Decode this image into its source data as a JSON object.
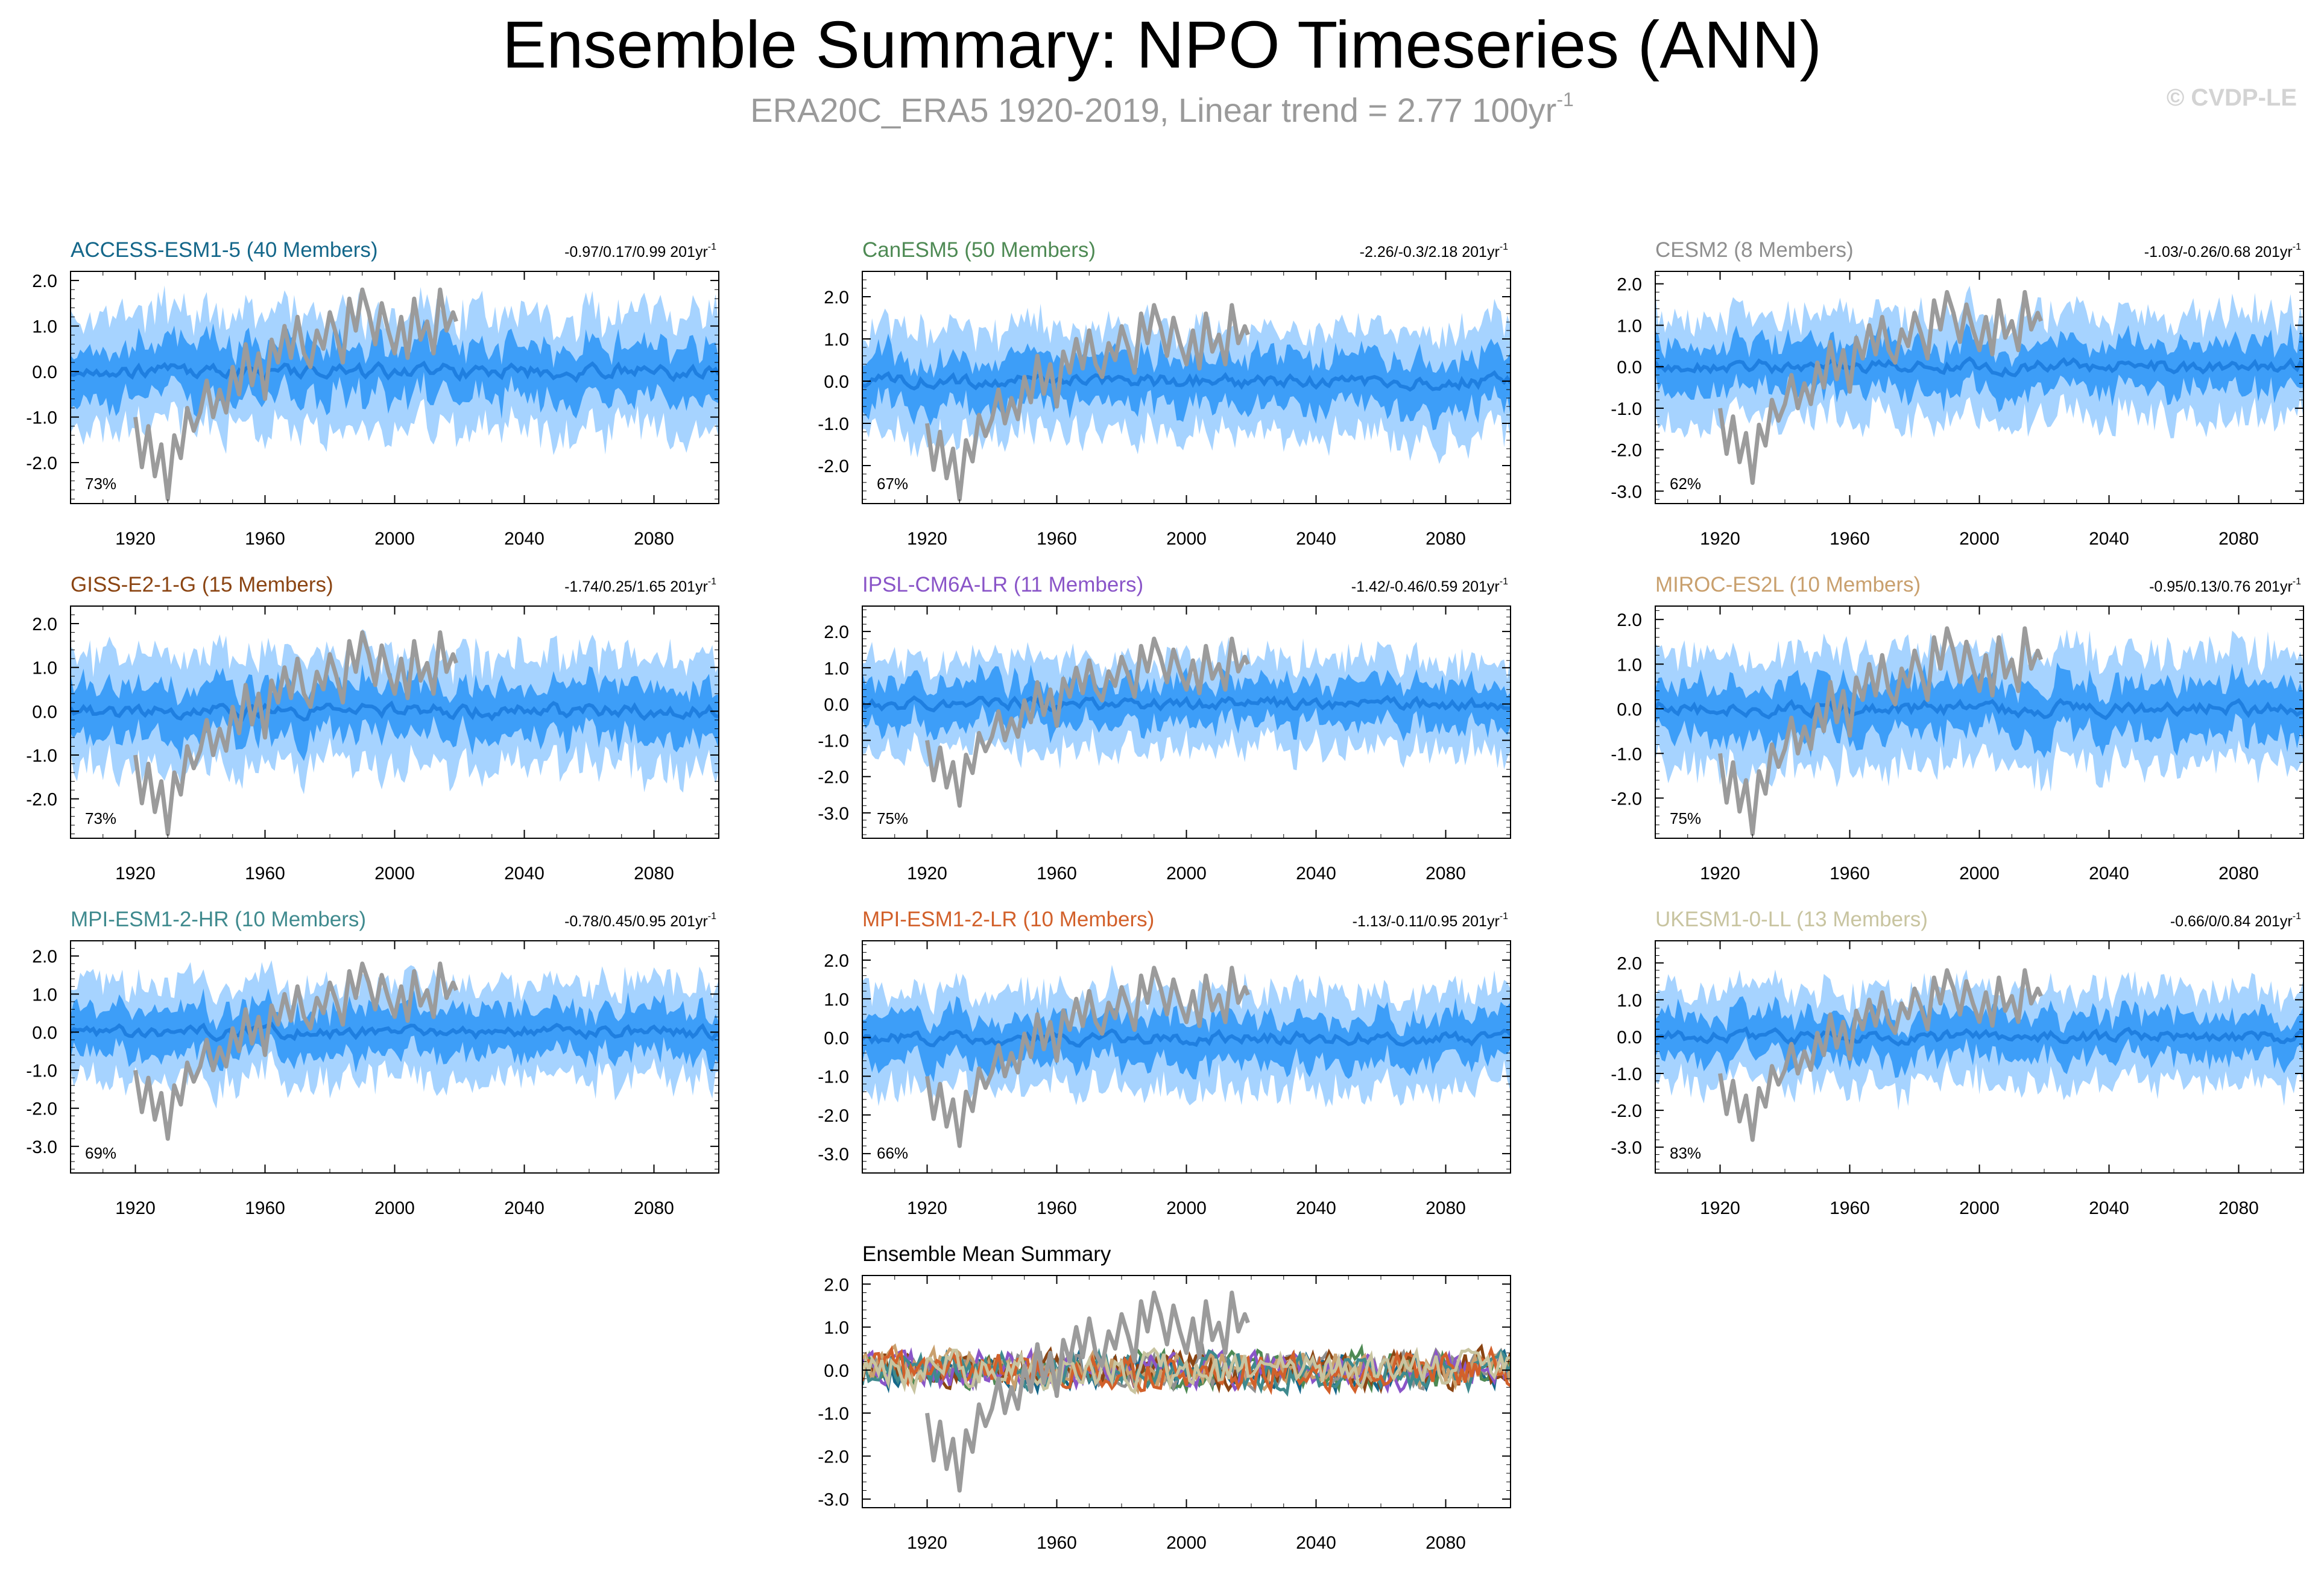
{
  "title": "Ensemble Summary: NPO Timeseries (ANN)",
  "subtitle": {
    "text": "ERA20C_ERA5 1920-2019, Linear trend = 2.77 100yr",
    "superscript": "-1"
  },
  "copyright": "© CVDP-LE",
  "colors": {
    "band_outer": "#a6d3ff",
    "band_inner": "#3d9ef8",
    "ensemble_mean": "#1f7fe0",
    "observation": "#9b9b9b"
  },
  "chart_data": [
    {
      "type": "area",
      "model": "ACCESS-ESM1-5",
      "label": "ACCESS-ESM1-5 (40 Members)",
      "label_color": "#14678a",
      "stats": "-0.97/0.17/0.99 201yr",
      "stats_sup": "-1",
      "percent": "73%",
      "x_range": [
        1900,
        2100
      ],
      "ylim": [
        -2.9,
        2.2
      ],
      "yticks": [
        "2.0",
        "1.0",
        "0.0",
        "-1.0",
        "-2.0"
      ],
      "ytick_values": [
        2,
        1,
        0,
        -1,
        -2
      ],
      "xticks": [
        "1920",
        "1960",
        "2000",
        "2040",
        "2080"
      ],
      "xtick_values": [
        1920,
        1960,
        2000,
        2040,
        2080
      ],
      "series": [
        {
          "name": "10-90% range",
          "amplitude_outer": 1.25
        },
        {
          "name": "25-75% range",
          "amplitude_inner": 0.6
        },
        {
          "name": "Ensemble mean"
        },
        {
          "name": "ERA20C_ERA5 1920-2019"
        }
      ]
    },
    {
      "type": "area",
      "model": "CanESM5",
      "label": "CanESM5 (50 Members)",
      "label_color": "#4e8a54",
      "stats": "-2.26/-0.3/2.18 201yr",
      "stats_sup": "-1",
      "percent": "67%",
      "x_range": [
        1900,
        2100
      ],
      "ylim": [
        -2.9,
        2.6
      ],
      "yticks": [
        "2.0",
        "1.0",
        "0.0",
        "-1.0",
        "-2.0"
      ],
      "ytick_values": [
        2,
        1,
        0,
        -1,
        -2
      ],
      "xticks": [
        "1920",
        "1960",
        "2000",
        "2040",
        "2080"
      ],
      "xtick_values": [
        1920,
        1960,
        2000,
        2040,
        2080
      ],
      "series": [
        {
          "name": "10-90% range"
        },
        {
          "name": "25-75% range"
        },
        {
          "name": "Ensemble mean"
        },
        {
          "name": "ERA20C_ERA5 1920-2019"
        }
      ]
    },
    {
      "type": "area",
      "model": "CESM2",
      "label": "CESM2 (8 Members)",
      "label_color": "#8f8f8f",
      "stats": "-1.03/-0.26/0.68 201yr",
      "stats_sup": "-1",
      "percent": "62%",
      "x_range": [
        1900,
        2100
      ],
      "ylim": [
        -3.3,
        2.3
      ],
      "yticks": [
        "2.0",
        "1.0",
        "0.0",
        "-1.0",
        "-2.0",
        "-3.0"
      ],
      "ytick_values": [
        2,
        1,
        0,
        -1,
        -2,
        -3
      ],
      "xticks": [
        "1920",
        "1960",
        "2000",
        "2040",
        "2080"
      ],
      "xtick_values": [
        1920,
        1960,
        2000,
        2040,
        2080
      ],
      "series": [
        {
          "name": "10-90% range"
        },
        {
          "name": "25-75% range"
        },
        {
          "name": "Ensemble mean"
        },
        {
          "name": "ERA20C_ERA5 1920-2019"
        }
      ]
    },
    {
      "type": "area",
      "model": "GISS-E2-1-G",
      "label": "GISS-E2-1-G (15 Members)",
      "label_color": "#8b4513",
      "stats": "-1.74/0.25/1.65 201yr",
      "stats_sup": "-1",
      "percent": "73%",
      "x_range": [
        1900,
        2100
      ],
      "ylim": [
        -2.9,
        2.4
      ],
      "yticks": [
        "2.0",
        "1.0",
        "0.0",
        "-1.0",
        "-2.0"
      ],
      "ytick_values": [
        2,
        1,
        0,
        -1,
        -2
      ],
      "xticks": [
        "1920",
        "1960",
        "2000",
        "2040",
        "2080"
      ],
      "xtick_values": [
        1920,
        1960,
        2000,
        2040,
        2080
      ],
      "series": [
        {
          "name": "10-90% range"
        },
        {
          "name": "25-75% range"
        },
        {
          "name": "Ensemble mean"
        },
        {
          "name": "ERA20C_ERA5 1920-2019"
        }
      ]
    },
    {
      "type": "area",
      "model": "IPSL-CM6A-LR",
      "label": "IPSL-CM6A-LR (11 Members)",
      "label_color": "#8a55c8",
      "stats": "-1.42/-0.46/0.59 201yr",
      "stats_sup": "-1",
      "percent": "75%",
      "x_range": [
        1900,
        2100
      ],
      "ylim": [
        -3.7,
        2.7
      ],
      "yticks": [
        "2.0",
        "1.0",
        "0.0",
        "-1.0",
        "-2.0",
        "-3.0"
      ],
      "ytick_values": [
        2,
        1,
        0,
        -1,
        -2,
        -3
      ],
      "xticks": [
        "1920",
        "1960",
        "2000",
        "2040",
        "2080"
      ],
      "xtick_values": [
        1920,
        1960,
        2000,
        2040,
        2080
      ],
      "series": [
        {
          "name": "10-90% range"
        },
        {
          "name": "25-75% range"
        },
        {
          "name": "Ensemble mean"
        },
        {
          "name": "ERA20C_ERA5 1920-2019"
        }
      ]
    },
    {
      "type": "area",
      "model": "MIROC-ES2L",
      "label": "MIROC-ES2L (10 Members)",
      "label_color": "#c9a06e",
      "stats": "-0.95/0.13/0.76 201yr",
      "stats_sup": "-1",
      "percent": "75%",
      "x_range": [
        1900,
        2100
      ],
      "ylim": [
        -2.9,
        2.3
      ],
      "yticks": [
        "2.0",
        "1.0",
        "0.0",
        "-1.0",
        "-2.0"
      ],
      "ytick_values": [
        2,
        1,
        0,
        -1,
        -2
      ],
      "xticks": [
        "1920",
        "1960",
        "2000",
        "2040",
        "2080"
      ],
      "xtick_values": [
        1920,
        1960,
        2000,
        2040,
        2080
      ],
      "series": [
        {
          "name": "10-90% range"
        },
        {
          "name": "25-75% range"
        },
        {
          "name": "Ensemble mean"
        },
        {
          "name": "ERA20C_ERA5 1920-2019"
        }
      ]
    },
    {
      "type": "area",
      "model": "MPI-ESM1-2-HR",
      "label": "MPI-ESM1-2-HR (10 Members)",
      "label_color": "#3f8a8e",
      "stats": "-0.78/0.45/0.95 201yr",
      "stats_sup": "-1",
      "percent": "69%",
      "x_range": [
        1900,
        2100
      ],
      "ylim": [
        -3.7,
        2.4
      ],
      "yticks": [
        "2.0",
        "1.0",
        "0.0",
        "-1.0",
        "-2.0",
        "-3.0"
      ],
      "ytick_values": [
        2,
        1,
        0,
        -1,
        -2,
        -3
      ],
      "xticks": [
        "1920",
        "1960",
        "2000",
        "2040",
        "2080"
      ],
      "xtick_values": [
        1920,
        1960,
        2000,
        2040,
        2080
      ],
      "series": [
        {
          "name": "10-90% range"
        },
        {
          "name": "25-75% range"
        },
        {
          "name": "Ensemble mean"
        },
        {
          "name": "ERA20C_ERA5 1920-2019"
        }
      ]
    },
    {
      "type": "area",
      "model": "MPI-ESM1-2-LR",
      "label": "MPI-ESM1-2-LR (10 Members)",
      "label_color": "#d2602a",
      "stats": "-1.13/-0.11/0.95 201yr",
      "stats_sup": "-1",
      "percent": "66%",
      "x_range": [
        1900,
        2100
      ],
      "ylim": [
        -3.5,
        2.5
      ],
      "yticks": [
        "2.0",
        "1.0",
        "0.0",
        "-1.0",
        "-2.0",
        "-3.0"
      ],
      "ytick_values": [
        2,
        1,
        0,
        -1,
        -2,
        -3
      ],
      "xticks": [
        "1920",
        "1960",
        "2000",
        "2040",
        "2080"
      ],
      "xtick_values": [
        1920,
        1960,
        2000,
        2040,
        2080
      ],
      "series": [
        {
          "name": "10-90% range"
        },
        {
          "name": "25-75% range"
        },
        {
          "name": "Ensemble mean"
        },
        {
          "name": "ERA20C_ERA5 1920-2019"
        }
      ]
    },
    {
      "type": "area",
      "model": "UKESM1-0-LL",
      "label": "UKESM1-0-LL (13 Members)",
      "label_color": "#c8c4a0",
      "stats": "-0.66/0/0.84 201yr",
      "stats_sup": "-1",
      "percent": "83%",
      "x_range": [
        1900,
        2100
      ],
      "ylim": [
        -3.7,
        2.6
      ],
      "yticks": [
        "2.0",
        "1.0",
        "0.0",
        "-1.0",
        "-2.0",
        "-3.0"
      ],
      "ytick_values": [
        2,
        1,
        0,
        -1,
        -2,
        -3
      ],
      "xticks": [
        "1920",
        "1960",
        "2000",
        "2040",
        "2080"
      ],
      "xtick_values": [
        1920,
        1960,
        2000,
        2040,
        2080
      ],
      "series": [
        {
          "name": "10-90% range"
        },
        {
          "name": "25-75% range"
        },
        {
          "name": "Ensemble mean"
        },
        {
          "name": "ERA20C_ERA5 1920-2019"
        }
      ]
    },
    {
      "type": "line",
      "model": "Ensemble Mean Summary",
      "label": "Ensemble Mean Summary",
      "label_color": "#000000",
      "stats": "",
      "stats_sup": "",
      "percent": "",
      "x_range": [
        1900,
        2100
      ],
      "ylim": [
        -3.2,
        2.2
      ],
      "yticks": [
        "2.0",
        "1.0",
        "0.0",
        "-1.0",
        "-2.0",
        "-3.0"
      ],
      "ytick_values": [
        2,
        1,
        0,
        -1,
        -2,
        -3
      ],
      "xticks": [
        "1920",
        "1960",
        "2000",
        "2040",
        "2080"
      ],
      "xtick_values": [
        1920,
        1960,
        2000,
        2040,
        2080
      ],
      "series": [
        {
          "name": "ACCESS-ESM1-5",
          "color": "#14678a"
        },
        {
          "name": "CanESM5",
          "color": "#4e8a54"
        },
        {
          "name": "CESM2",
          "color": "#8f8f8f"
        },
        {
          "name": "GISS-E2-1-G",
          "color": "#8b4513"
        },
        {
          "name": "IPSL-CM6A-LR",
          "color": "#8a55c8"
        },
        {
          "name": "MIROC-ES2L",
          "color": "#c9a06e"
        },
        {
          "name": "MPI-ESM1-2-HR",
          "color": "#3f8a8e"
        },
        {
          "name": "MPI-ESM1-2-LR",
          "color": "#d2602a"
        },
        {
          "name": "UKESM1-0-LL",
          "color": "#c8c4a0"
        },
        {
          "name": "ERA20C_ERA5 1920-2019",
          "color": "#9b9b9b"
        }
      ]
    }
  ],
  "observation": {
    "name": "ERA20C_ERA5 1920-2019",
    "years": [
      1920,
      1922,
      1924,
      1926,
      1928,
      1930,
      1932,
      1934,
      1936,
      1938,
      1940,
      1942,
      1944,
      1946,
      1948,
      1950,
      1952,
      1954,
      1956,
      1958,
      1960,
      1962,
      1964,
      1966,
      1968,
      1970,
      1972,
      1974,
      1976,
      1978,
      1980,
      1982,
      1984,
      1986,
      1988,
      1990,
      1992,
      1994,
      1996,
      1998,
      2000,
      2002,
      2004,
      2006,
      2008,
      2010,
      2012,
      2014,
      2016,
      2018,
      2019
    ],
    "values": [
      -1.0,
      -2.1,
      -1.2,
      -2.3,
      -1.6,
      -2.8,
      -1.4,
      -1.9,
      -0.8,
      -1.3,
      -0.9,
      -0.2,
      -1.0,
      -0.4,
      -0.9,
      0.1,
      -0.5,
      0.6,
      -0.3,
      0.4,
      -0.6,
      0.7,
      0.2,
      1.0,
      0.3,
      1.2,
      0.4,
      0.1,
      0.9,
      0.5,
      1.3,
      0.8,
      0.2,
      1.6,
      0.9,
      1.8,
      1.3,
      0.6,
      1.5,
      0.9,
      0.4,
      1.2,
      0.3,
      1.6,
      0.7,
      1.1,
      0.4,
      1.8,
      0.9,
      1.3,
      1.1
    ]
  }
}
